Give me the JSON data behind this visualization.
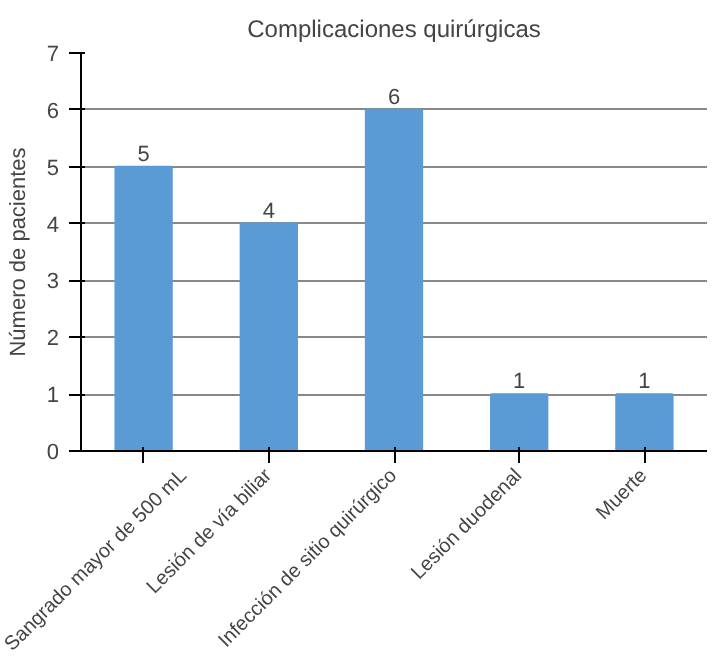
{
  "chart_data": {
    "type": "bar",
    "title": "Complicaciones quirúrgicas",
    "ylabel": "Número de pacientes",
    "categories": [
      "Sangrado mayor de 500 mL",
      "Lesión de vía biliar",
      "Infección de sitio quirúrgico",
      "Lesión duodenal",
      "Muerte"
    ],
    "values": [
      5,
      4,
      6,
      1,
      1
    ],
    "color": "#5b9bd5",
    "ylim": [
      0,
      7
    ],
    "yticks": [
      0,
      1,
      2,
      3,
      4,
      5,
      6,
      7
    ],
    "grid": "y",
    "data_labels": true
  }
}
